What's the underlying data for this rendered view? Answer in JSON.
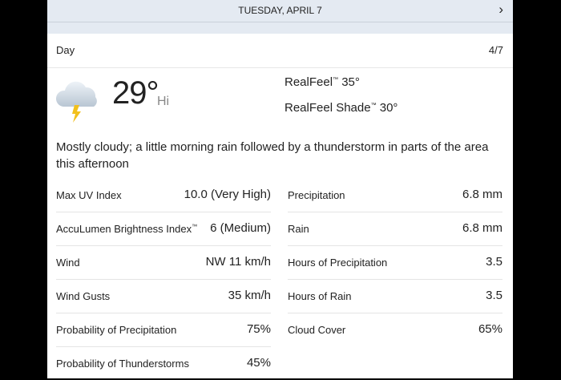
{
  "header": {
    "date": "TUESDAY, APRIL 7",
    "next_icon": "chevron-right-icon"
  },
  "day": {
    "label": "Day",
    "date": "4/7"
  },
  "current": {
    "icon": "thunderstorm-cloud-icon",
    "temp": "29°",
    "hi_label": "Hi",
    "realfeel_label": "RealFeel",
    "realfeel": "35°",
    "realfeel_shade_label": "RealFeel Shade",
    "realfeel_shade": "30°",
    "tm": "™"
  },
  "description": "Mostly cloudy; a little morning rain followed by a thunderstorm in parts of the area this afternoon",
  "left_stats": [
    {
      "label": "Max UV Index",
      "value": "10.0 (Very High)"
    },
    {
      "label": "AccuLumen Brightness Index",
      "tm": "™",
      "value": "6 (Medium)"
    },
    {
      "label": "Wind",
      "value": "NW 11 km/h"
    },
    {
      "label": "Wind Gusts",
      "value": "35 km/h"
    },
    {
      "label": "Probability of Precipitation",
      "value": "75%"
    },
    {
      "label": "Probability of Thunderstorms",
      "value": "45%"
    }
  ],
  "right_stats": [
    {
      "label": "Precipitation",
      "value": "6.8 mm"
    },
    {
      "label": "Rain",
      "value": "6.8 mm"
    },
    {
      "label": "Hours of Precipitation",
      "value": "3.5"
    },
    {
      "label": "Hours of Rain",
      "value": "3.5"
    },
    {
      "label": "Cloud Cover",
      "value": "65%"
    }
  ]
}
